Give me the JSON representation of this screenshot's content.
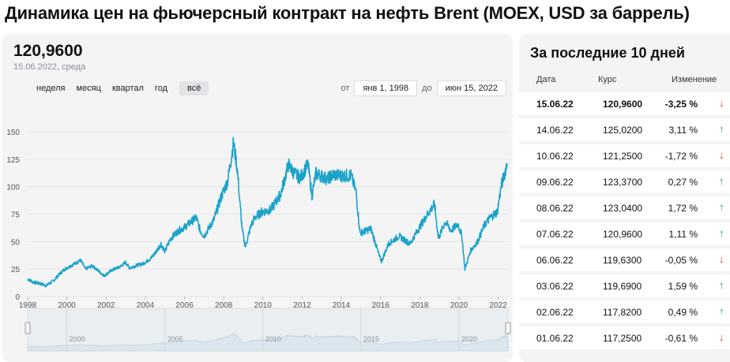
{
  "page_title": "Динамика цен на фьючерсный контракт на нефть Brent (MOEX, USD за баррель)",
  "header": {
    "current_value": "120,9600",
    "current_date": "15.06.2022, среда"
  },
  "periods": [
    "неделя",
    "месяц",
    "квартал",
    "год",
    "всё"
  ],
  "active_period": "всё",
  "range": {
    "from_label": "от",
    "from_value": "янв 1, 1998",
    "to_label": "до",
    "to_value": "июн 15, 2022"
  },
  "colors": {
    "line": "#1ba3c9",
    "up": "#2aa544",
    "down": "#d63a2a"
  },
  "chart_data": {
    "type": "line",
    "title": "",
    "xlabel": "",
    "ylabel": "",
    "xlim": [
      1998,
      2022.5
    ],
    "ylim": [
      0,
      160
    ],
    "y_ticks": [
      "0",
      "25",
      "50",
      "75",
      "100",
      "125",
      "150"
    ],
    "x_ticks": [
      "1998",
      "2000",
      "2002",
      "2004",
      "2006",
      "2008",
      "2010",
      "2012",
      "2014",
      "2016",
      "2018",
      "2020",
      "2022"
    ],
    "navigator_ticks": [
      "2000",
      "2005",
      "2010",
      "2015",
      "2020"
    ],
    "grid": true,
    "series": [
      {
        "name": "",
        "x": [
          1998.0,
          1998.3,
          1998.6,
          1998.95,
          1999.3,
          1999.6,
          1999.9,
          2000.2,
          2000.5,
          2000.7,
          2000.95,
          2001.3,
          2001.7,
          2001.9,
          2002.3,
          2002.7,
          2003.0,
          2003.2,
          2003.5,
          2003.9,
          2004.3,
          2004.6,
          2004.8,
          2005.0,
          2005.3,
          2005.7,
          2006.0,
          2006.6,
          2006.8,
          2007.0,
          2007.5,
          2007.9,
          2008.2,
          2008.5,
          2008.7,
          2008.85,
          2008.95,
          2009.1,
          2009.4,
          2009.6,
          2009.95,
          2010.4,
          2010.9,
          2011.3,
          2011.6,
          2011.9,
          2012.3,
          2012.5,
          2012.7,
          2012.95,
          2013.3,
          2013.6,
          2013.95,
          2014.5,
          2014.75,
          2014.95,
          2015.3,
          2015.5,
          2015.75,
          2015.95,
          2016.05,
          2016.4,
          2016.95,
          2017.5,
          2017.95,
          2018.4,
          2018.75,
          2018.95,
          2019.3,
          2019.6,
          2019.95,
          2020.15,
          2020.3,
          2020.6,
          2020.95,
          2021.3,
          2021.6,
          2021.95,
          2022.15,
          2022.3,
          2022.45
        ],
        "values": [
          16,
          13,
          12,
          10,
          14,
          20,
          25,
          28,
          31,
          33,
          25,
          28,
          22,
          19,
          24,
          27,
          31,
          26,
          28,
          30,
          35,
          42,
          48,
          41,
          53,
          60,
          63,
          72,
          60,
          55,
          70,
          92,
          105,
          140,
          115,
          80,
          60,
          45,
          65,
          72,
          77,
          79,
          93,
          120,
          112,
          108,
          120,
          92,
          112,
          110,
          107,
          111,
          110,
          110,
          95,
          58,
          60,
          62,
          48,
          36,
          32,
          48,
          55,
          48,
          62,
          75,
          84,
          53,
          68,
          60,
          66,
          55,
          25,
          42,
          50,
          65,
          72,
          77,
          100,
          110,
          121
        ]
      }
    ]
  },
  "table": {
    "title": "За последние 10 дней",
    "headers": [
      "Дата",
      "Курс",
      "Изменение"
    ],
    "rows": [
      {
        "date": "15.06.22",
        "price": "120,9600",
        "change": "-3,25 %",
        "dir": "down",
        "arrow": "↓"
      },
      {
        "date": "14.06.22",
        "price": "125,0200",
        "change": "3,11 %",
        "dir": "up",
        "arrow": "↑"
      },
      {
        "date": "10.06.22",
        "price": "121,2500",
        "change": "-1,72 %",
        "dir": "down",
        "arrow": "↓"
      },
      {
        "date": "09.06.22",
        "price": "123,3700",
        "change": "0,27 %",
        "dir": "up",
        "arrow": "↑"
      },
      {
        "date": "08.06.22",
        "price": "123,0400",
        "change": "1,72 %",
        "dir": "up",
        "arrow": "↑"
      },
      {
        "date": "07.06.22",
        "price": "120,9600",
        "change": "1,11 %",
        "dir": "up",
        "arrow": "↑"
      },
      {
        "date": "06.06.22",
        "price": "119,6300",
        "change": "-0,05 %",
        "dir": "down",
        "arrow": "↓"
      },
      {
        "date": "03.06.22",
        "price": "119,6900",
        "change": "1,59 %",
        "dir": "up",
        "arrow": "↑"
      },
      {
        "date": "02.06.22",
        "price": "117,8200",
        "change": "0,49 %",
        "dir": "up",
        "arrow": "↑"
      },
      {
        "date": "01.06.22",
        "price": "117,2500",
        "change": "-0,61 %",
        "dir": "down",
        "arrow": "↓"
      }
    ]
  }
}
